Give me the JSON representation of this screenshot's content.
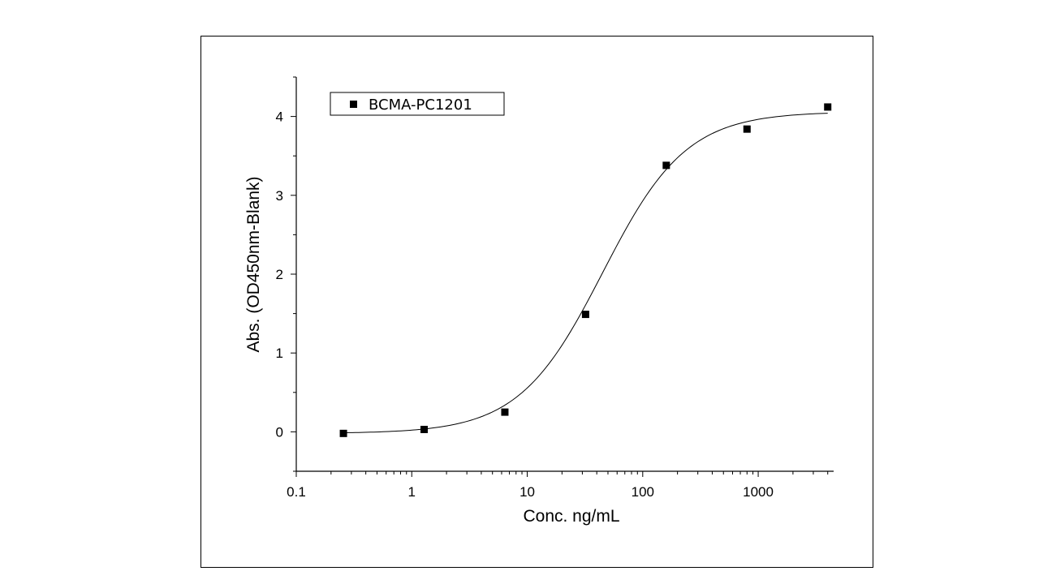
{
  "chart_data": {
    "type": "scatter",
    "xlabel": "Conc. ng/mL",
    "ylabel": "Abs. (OD450nm-Blank)",
    "xscale": "log",
    "xlim": [
      0.1,
      4500
    ],
    "ylim": [
      -0.5,
      4.5
    ],
    "x_ticks": [
      0.1,
      1,
      10,
      100,
      1000
    ],
    "x_tick_labels": [
      "0.1",
      "1",
      "10",
      "100",
      "1000"
    ],
    "y_ticks": [
      0,
      1,
      2,
      3,
      4
    ],
    "y_tick_labels": [
      "0",
      "1",
      "2",
      "3",
      "4"
    ],
    "grid": false,
    "legend_position": "top-left",
    "series": [
      {
        "name": "BCMA-PC1201",
        "marker": "square",
        "color": "#000000",
        "x": [
          0.256,
          1.28,
          6.4,
          32,
          160,
          800,
          4000
        ],
        "y": [
          -0.02,
          0.03,
          0.25,
          1.49,
          3.38,
          3.84,
          4.12
        ]
      }
    ],
    "fit_curve": {
      "model": "4PL",
      "bottom": -0.02,
      "top": 4.06,
      "ec50": 45,
      "hill": 1.2,
      "color": "#000000"
    }
  }
}
